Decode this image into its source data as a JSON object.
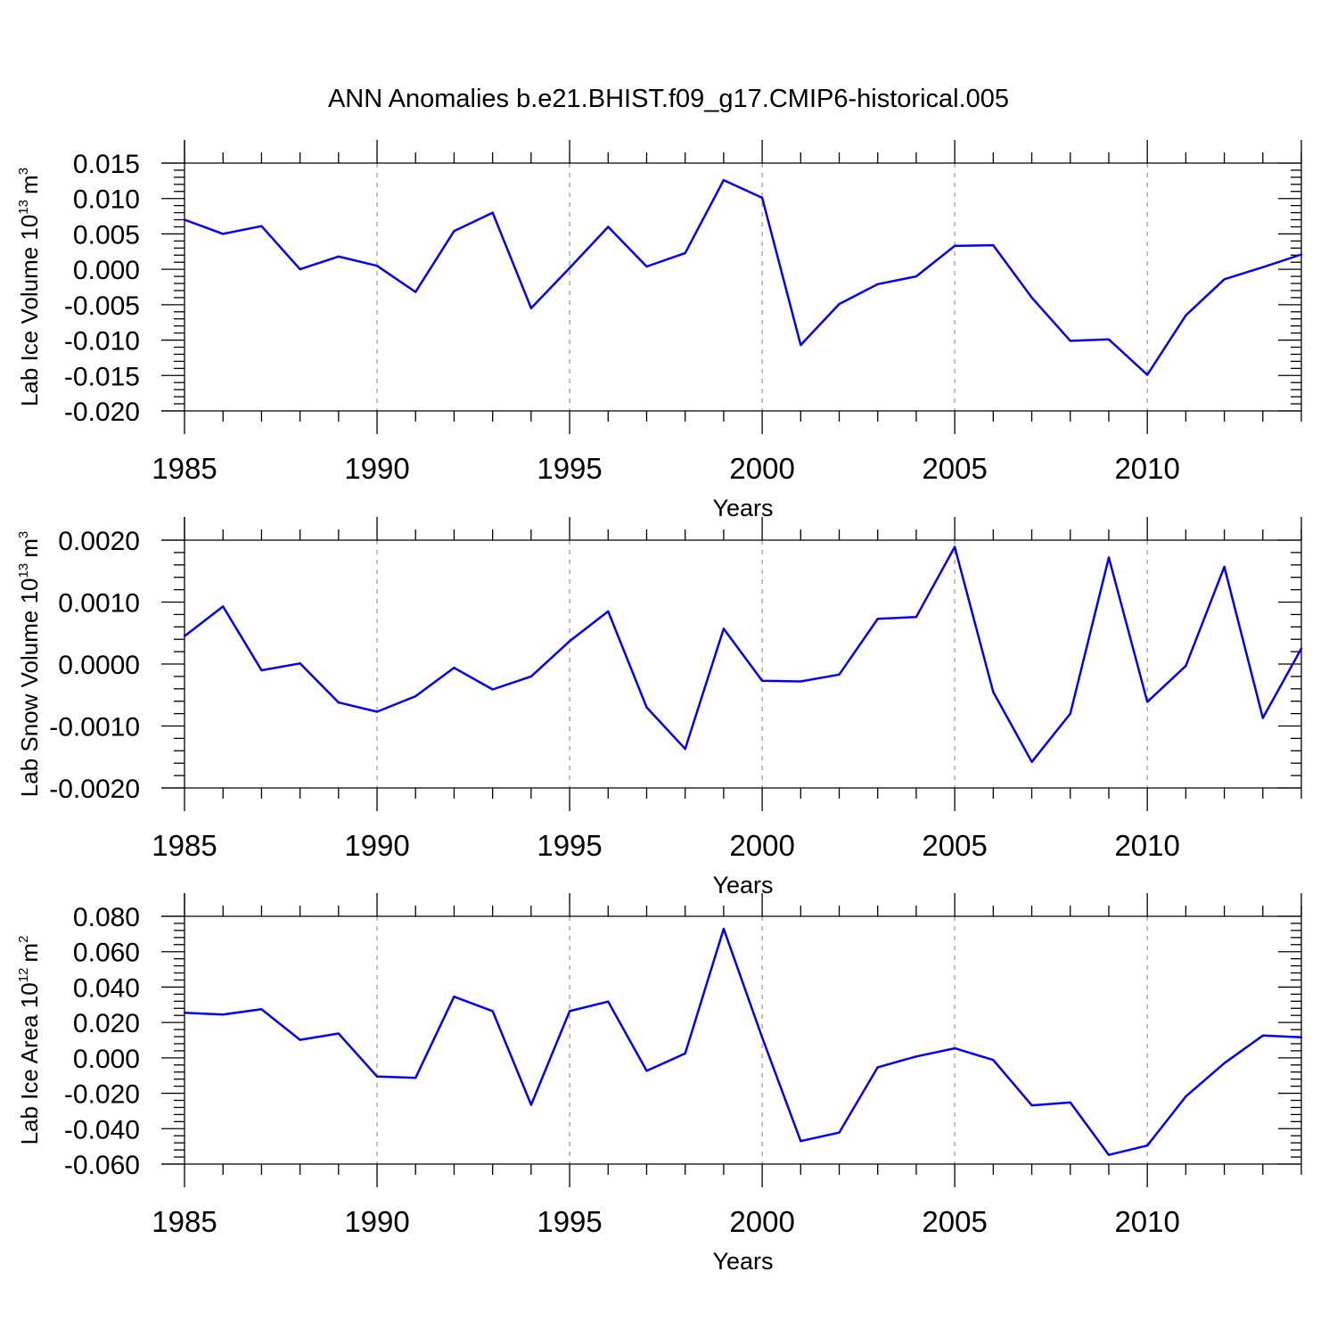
{
  "title": "ANN Anomalies b.e21.BHIST.f09_g17.CMIP6-historical.005",
  "colors": {
    "line": "#0000ff",
    "axis": "#000000",
    "grid": "#aaaaaa"
  },
  "chart_data": [
    {
      "type": "line",
      "ylabel_text": "Lab Ice Volume 10",
      "ylabel_exp": "13",
      "ylabel_unit": "m",
      "ylabel_unit_exp": "3",
      "xlabel": "Years",
      "xlim": [
        1985,
        2014
      ],
      "ylim": [
        -0.02,
        0.015
      ],
      "yticks": [
        {
          "v": 0.015,
          "label": "0.015"
        },
        {
          "v": 0.01,
          "label": "0.010"
        },
        {
          "v": 0.005,
          "label": "0.005"
        },
        {
          "v": 0.0,
          "label": "0.000"
        },
        {
          "v": -0.005,
          "label": "-0.005"
        },
        {
          "v": -0.01,
          "label": "-0.010"
        },
        {
          "v": -0.015,
          "label": "-0.015"
        },
        {
          "v": -0.02,
          "label": "-0.020"
        }
      ],
      "xticks": [
        "1985",
        "1990",
        "1995",
        "2000",
        "2005",
        "2010"
      ],
      "grid": "vertical dashed at major x ticks",
      "x": [
        1985,
        1986,
        1987,
        1988,
        1989,
        1990,
        1991,
        1992,
        1993,
        1994,
        1995,
        1996,
        1997,
        1998,
        1999,
        2000,
        2001,
        2002,
        2003,
        2004,
        2005,
        2006,
        2007,
        2008,
        2009,
        2010,
        2011,
        2012,
        2013,
        2014
      ],
      "series": [
        {
          "values": [
            0.007,
            0.005,
            0.0061,
            0.0,
            0.0018,
            0.0005,
            -0.0032,
            0.0054,
            0.008,
            -0.0055,
            0.0002,
            0.006,
            0.0004,
            0.0023,
            0.0126,
            0.0101,
            -0.0107,
            -0.0049,
            -0.0021,
            -0.001,
            0.0033,
            0.0034,
            -0.004,
            -0.0101,
            -0.0099,
            -0.0149,
            -0.0065,
            -0.0014,
            0.0003,
            0.0021
          ]
        }
      ]
    },
    {
      "type": "line",
      "ylabel_text": "Lab Snow Volume 10",
      "ylabel_exp": "13",
      "ylabel_unit": "m",
      "ylabel_unit_exp": "3",
      "xlabel": "Years",
      "xlim": [
        1985,
        2014
      ],
      "ylim": [
        -0.002,
        0.002
      ],
      "yticks": [
        {
          "v": 0.002,
          "label": "0.0020"
        },
        {
          "v": 0.001,
          "label": "0.0010"
        },
        {
          "v": 0.0,
          "label": "0.0000"
        },
        {
          "v": -0.001,
          "label": "-0.0010"
        },
        {
          "v": -0.002,
          "label": "-0.0020"
        }
      ],
      "xticks": [
        "1985",
        "1990",
        "1995",
        "2000",
        "2005",
        "2010"
      ],
      "grid": "vertical dashed at major x ticks",
      "x": [
        1985,
        1986,
        1987,
        1988,
        1989,
        1990,
        1991,
        1992,
        1993,
        1994,
        1995,
        1996,
        1997,
        1998,
        1999,
        2000,
        2001,
        2002,
        2003,
        2004,
        2005,
        2006,
        2007,
        2008,
        2009,
        2010,
        2011,
        2012,
        2013,
        2014
      ],
      "series": [
        {
          "values": [
            0.00045,
            0.00093,
            -0.0001,
            1e-05,
            -0.00062,
            -0.00077,
            -0.00052,
            -6e-05,
            -0.00041,
            -0.0002,
            0.00037,
            0.00085,
            -0.0007,
            -0.00137,
            0.00057,
            -0.00027,
            -0.00028,
            -0.00017,
            0.00073,
            0.00076,
            0.00189,
            -0.00045,
            -0.00158,
            -0.0008,
            0.00172,
            -0.00061,
            -3e-05,
            0.00157,
            -0.00087,
            0.00025
          ]
        }
      ]
    },
    {
      "type": "line",
      "ylabel_text": "Lab Ice Area 10",
      "ylabel_exp": "12",
      "ylabel_unit": "m",
      "ylabel_unit_exp": "2",
      "xlabel": "Years",
      "xlim": [
        1985,
        2014
      ],
      "ylim": [
        -0.06,
        0.08
      ],
      "yticks": [
        {
          "v": 0.08,
          "label": "0.080"
        },
        {
          "v": 0.06,
          "label": "0.060"
        },
        {
          "v": 0.04,
          "label": "0.040"
        },
        {
          "v": 0.02,
          "label": "0.020"
        },
        {
          "v": 0.0,
          "label": "0.000"
        },
        {
          "v": -0.02,
          "label": "-0.020"
        },
        {
          "v": -0.04,
          "label": "-0.040"
        },
        {
          "v": -0.06,
          "label": "-0.060"
        }
      ],
      "xticks": [
        "1985",
        "1990",
        "1995",
        "2000",
        "2005",
        "2010"
      ],
      "grid": "vertical dashed at major x ticks",
      "x": [
        1985,
        1986,
        1987,
        1988,
        1989,
        1990,
        1991,
        1992,
        1993,
        1994,
        1995,
        1996,
        1997,
        1998,
        1999,
        2000,
        2001,
        2002,
        2003,
        2004,
        2005,
        2006,
        2007,
        2008,
        2009,
        2010,
        2011,
        2012,
        2013,
        2014
      ],
      "series": [
        {
          "values": [
            0.0255,
            0.0245,
            0.0275,
            0.0102,
            0.0138,
            -0.0105,
            -0.0113,
            0.0346,
            0.0264,
            -0.0265,
            0.0264,
            0.0318,
            -0.0073,
            0.0025,
            0.0729,
            0.0115,
            -0.047,
            -0.0422,
            -0.0053,
            0.0008,
            0.0054,
            -0.0012,
            -0.0268,
            -0.0252,
            -0.0548,
            -0.0495,
            -0.0218,
            -0.003,
            0.0126,
            0.0116
          ]
        }
      ]
    }
  ]
}
